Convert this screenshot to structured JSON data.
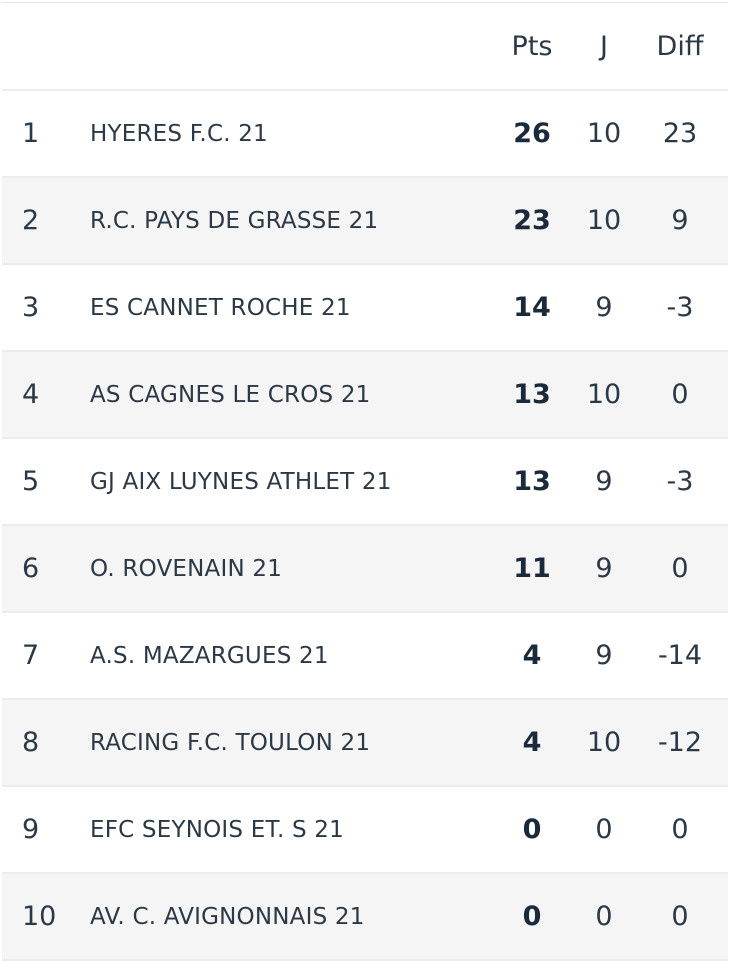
{
  "standings": {
    "columns": {
      "pts": "Pts",
      "j": "J",
      "diff": "Diff"
    },
    "rows": [
      {
        "rank": "1",
        "team": "HYERES F.C. 21",
        "pts": "26",
        "j": "10",
        "diff": "23"
      },
      {
        "rank": "2",
        "team": "R.C. PAYS DE GRASSE 21",
        "pts": "23",
        "j": "10",
        "diff": "9"
      },
      {
        "rank": "3",
        "team": "ES CANNET ROCHE 21",
        "pts": "14",
        "j": "9",
        "diff": "-3"
      },
      {
        "rank": "4",
        "team": "AS CAGNES LE CROS 21",
        "pts": "13",
        "j": "10",
        "diff": "0"
      },
      {
        "rank": "5",
        "team": "GJ AIX LUYNES ATHLET 21",
        "pts": "13",
        "j": "9",
        "diff": "-3"
      },
      {
        "rank": "6",
        "team": "O. ROVENAIN 21",
        "pts": "11",
        "j": "9",
        "diff": "0"
      },
      {
        "rank": "7",
        "team": "A.S. MAZARGUES 21",
        "pts": "4",
        "j": "9",
        "diff": "-14"
      },
      {
        "rank": "8",
        "team": "RACING F.C. TOULON 21",
        "pts": "4",
        "j": "10",
        "diff": "-12"
      },
      {
        "rank": "9",
        "team": "EFC SEYNOIS ET. S 21",
        "pts": "0",
        "j": "0",
        "diff": "0"
      },
      {
        "rank": "10",
        "team": "AV. C. AVIGNONNAIS 21",
        "pts": "0",
        "j": "0",
        "diff": "0"
      }
    ]
  },
  "colors": {
    "text": "#2b3845",
    "row_alt_bg": "#f5f5f5",
    "divider": "#ececec"
  }
}
